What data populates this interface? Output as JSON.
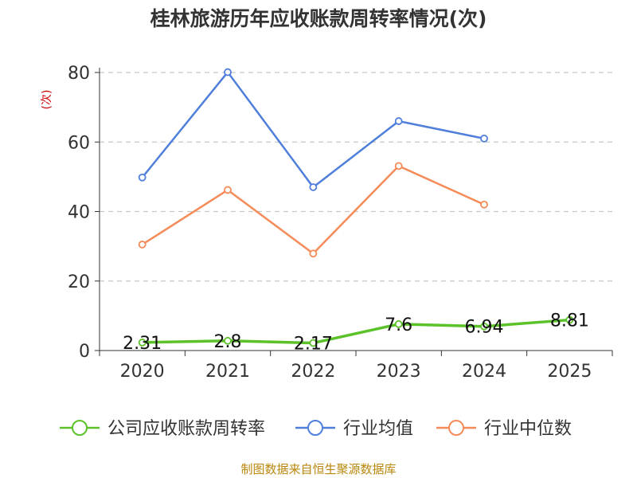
{
  "chart_data": {
    "type": "line",
    "title": "桂林旅游历年应收账款周转率情况(次)",
    "ylabel": "(次)",
    "categories": [
      "2020",
      "2021",
      "2022",
      "2023",
      "2024",
      "2025"
    ],
    "ylim": [
      0,
      80
    ],
    "yticks": [
      0,
      20,
      40,
      60,
      80
    ],
    "grid": true,
    "legend_position": "bottom",
    "series": [
      {
        "name": "公司应收账款周转率",
        "values": [
          2.31,
          2.8,
          2.17,
          7.6,
          6.94,
          8.81
        ],
        "labels": [
          "2.31",
          "2.8",
          "2.17",
          "7.6",
          "6.94",
          "8.81"
        ],
        "color": "#5cc22a"
      },
      {
        "name": "行业均值",
        "values": [
          49.8,
          80.1,
          47.0,
          66.0,
          61.0,
          null
        ],
        "color": "#4f7fdb"
      },
      {
        "name": "行业中位数",
        "values": [
          30.5,
          46.2,
          27.9,
          53.1,
          42.0,
          null
        ],
        "color": "#f58b58"
      }
    ],
    "source": "制图数据来自恒生聚源数据库"
  }
}
